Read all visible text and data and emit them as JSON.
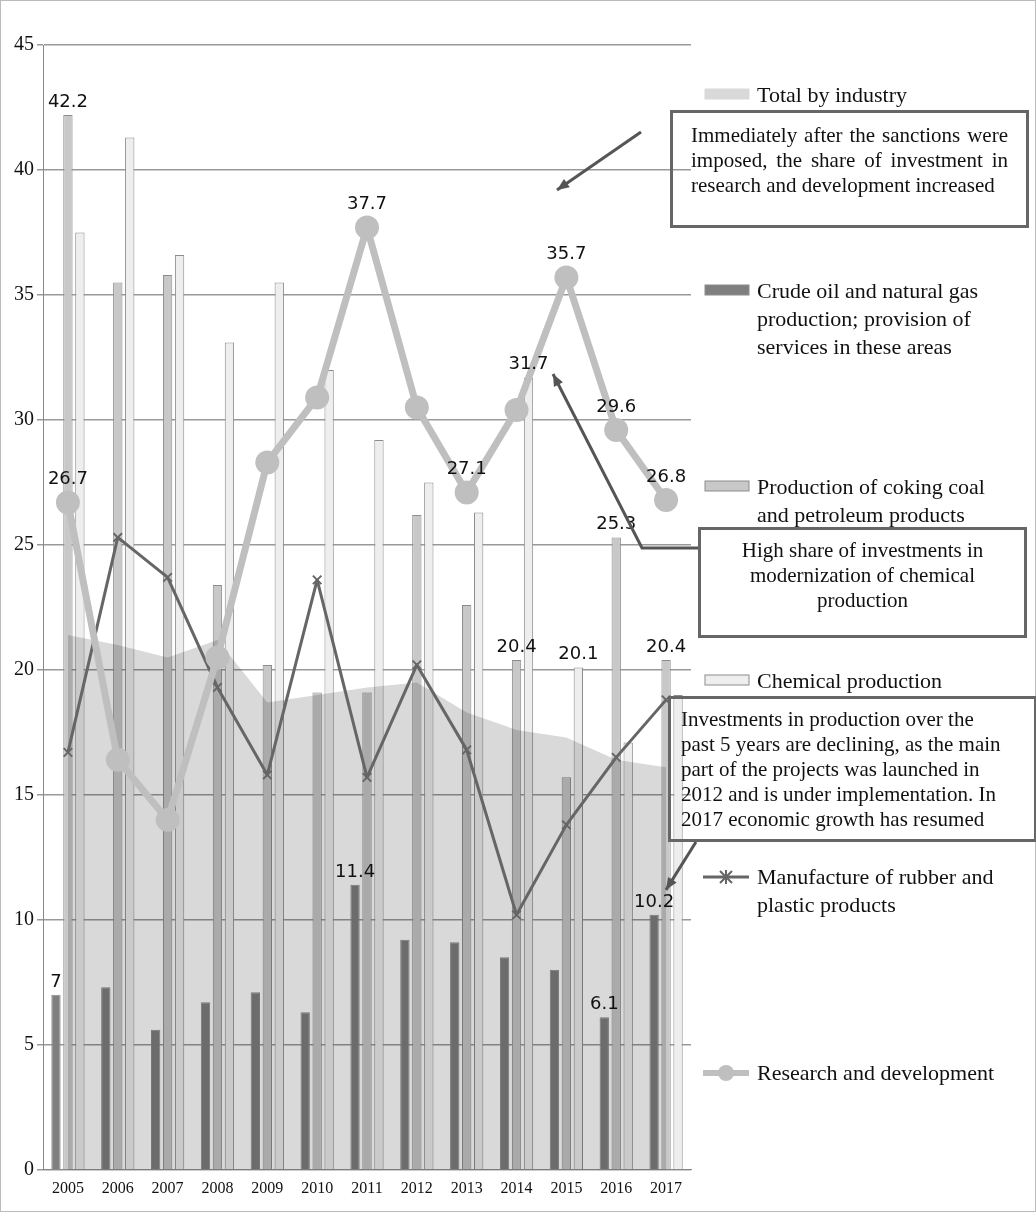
{
  "chart_data": {
    "type": "bar",
    "categories": [
      "2005",
      "2006",
      "2007",
      "2008",
      "2009",
      "2010",
      "2011",
      "2012",
      "2013",
      "2014",
      "2015",
      "2016",
      "2017"
    ],
    "ylim": [
      0,
      45
    ],
    "yticks": [
      0,
      5,
      10,
      15,
      20,
      25,
      30,
      35,
      40,
      45
    ],
    "grid": "y",
    "legend": "right",
    "series": [
      {
        "name": "Total by industry",
        "type": "area",
        "color": "#d9d9d9",
        "values": [
          21.4,
          21.0,
          20.5,
          21.2,
          18.7,
          19.0,
          19.3,
          19.5,
          18.3,
          17.6,
          17.3,
          16.4,
          16.1
        ]
      },
      {
        "name": "Crude oil and natural gas production; provision of services in these areas",
        "type": "bar",
        "color": "#7f7f7f",
        "values": [
          7,
          7.3,
          5.6,
          6.7,
          7.1,
          6.3,
          11.4,
          9.2,
          9.1,
          8.5,
          8.0,
          6.1,
          10.2
        ],
        "value_labels": [
          "7",
          null,
          null,
          null,
          null,
          null,
          "11.4",
          null,
          null,
          null,
          null,
          "6.1",
          "10.2"
        ]
      },
      {
        "name": "Production of coking coal and petroleum products",
        "type": "bar",
        "color": "#c8c8c8",
        "values": [
          42.2,
          35.5,
          35.8,
          23.4,
          20.2,
          19.1,
          19.1,
          26.2,
          22.6,
          20.4,
          15.7,
          25.3,
          20.4
        ],
        "value_labels": [
          "42.2",
          null,
          null,
          null,
          null,
          null,
          null,
          null,
          null,
          "20.4",
          null,
          "25.3",
          "20.4"
        ]
      },
      {
        "name": "Chemical production",
        "type": "bar",
        "color": "#eeeeee",
        "values": [
          37.5,
          41.3,
          36.6,
          33.1,
          35.5,
          32.0,
          29.2,
          27.5,
          26.3,
          31.7,
          20.1,
          17.1,
          19.0
        ],
        "value_labels": [
          null,
          null,
          null,
          null,
          null,
          null,
          null,
          null,
          null,
          "31.7",
          "20.1",
          null,
          null
        ]
      },
      {
        "name": "Manufacture of rubber and plastic products",
        "type": "line",
        "color": "#666666",
        "marker": "cross",
        "values": [
          16.7,
          25.3,
          23.7,
          19.3,
          15.8,
          23.6,
          15.7,
          20.2,
          16.8,
          10.2,
          13.8,
          16.5,
          18.8
        ]
      },
      {
        "name": "Research and development",
        "type": "line",
        "color": "#bfbfbf",
        "marker": "circle",
        "values": [
          26.7,
          16.4,
          14.0,
          20.5,
          28.3,
          30.9,
          37.7,
          30.5,
          27.1,
          30.4,
          35.7,
          29.6,
          26.8
        ],
        "value_labels": [
          "26.7",
          null,
          null,
          null,
          null,
          null,
          "37.7",
          null,
          "27.1",
          null,
          "35.7",
          "29.6",
          "26.8"
        ]
      }
    ],
    "annotations": [
      "Immediately after the sanctions were imposed, the share of investment in research and development increased",
      "High share of investments in modernization of chemical production",
      {
        "text": "Investments in production over the past 5 years are declining, as the main part of the projects was launched in 2012 and is under implementation. In 2017 economic growth has resumed",
        "x": "2017",
        "y": 11.2
      }
    ]
  }
}
